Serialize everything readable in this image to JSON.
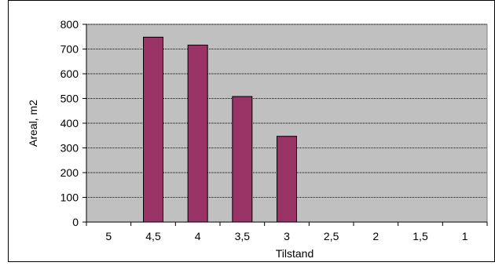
{
  "chart_data": {
    "type": "bar",
    "categories": [
      "5",
      "4,5",
      "4",
      "3,5",
      "3",
      "2,5",
      "2",
      "1,5",
      "1"
    ],
    "values": [
      0,
      748,
      716,
      508,
      347,
      0,
      0,
      0,
      0
    ],
    "xlabel": "Tilstand",
    "ylabel": "Areal, m2",
    "ylim": [
      0,
      800
    ],
    "yticks": [
      0,
      100,
      200,
      300,
      400,
      500,
      600,
      700,
      800
    ],
    "grid": true,
    "legend": "none",
    "colors": {
      "bar_fill": "#993366",
      "bar_stroke": "#000000",
      "plot_background": "#c0c0c0",
      "gridline": "#000000"
    }
  }
}
